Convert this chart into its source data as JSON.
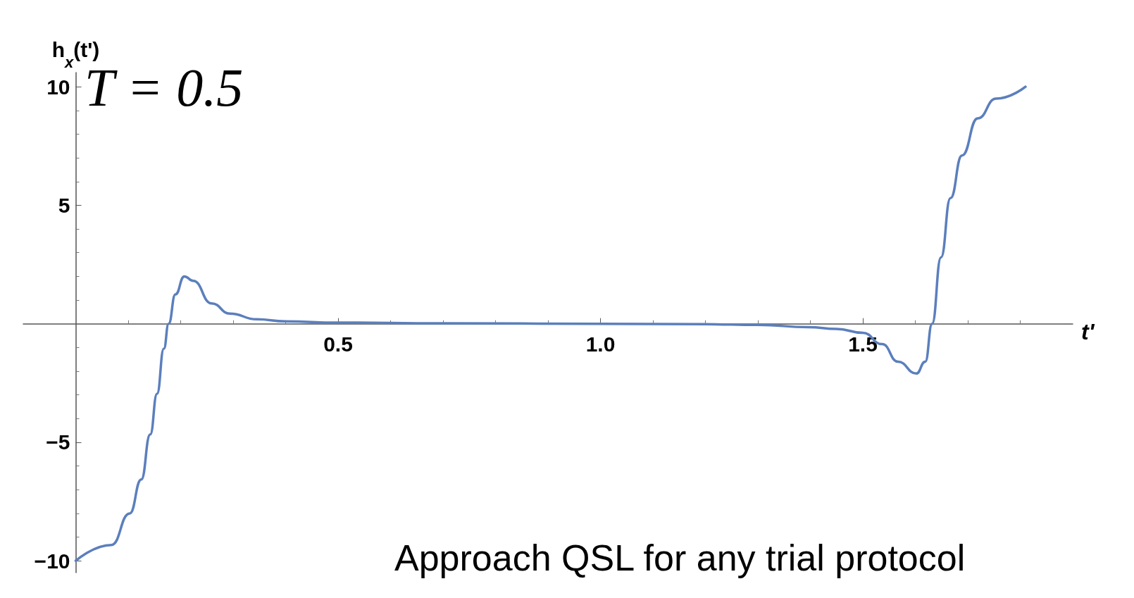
{
  "chart_data": {
    "type": "line",
    "xlabel": "t'",
    "ylabel": "h$_{x}$(t')",
    "annotations": [
      "T = 0.5",
      "Approach QSL for any trial protocol"
    ],
    "xlim": [
      -0.1,
      1.9
    ],
    "ylim": [
      -10.5,
      10.6
    ],
    "xticks": [
      0.5,
      {
        "value": 1,
        "label": "1.0"
      },
      1.5
    ],
    "yticks": [
      -10,
      -5,
      5,
      10
    ],
    "grid": false,
    "marker": "none",
    "line_style": "solid",
    "series": [
      {
        "color": "#5b7fbd",
        "x": [
          0,
          0.068,
          0.103,
          0.125,
          0.142,
          0.155,
          0.168,
          0.177,
          0.19,
          0.207,
          0.224,
          0.259,
          0.294,
          0.345,
          0.4,
          0.5,
          0.7,
          1.0,
          1.2,
          1.3,
          1.397,
          1.45,
          1.5,
          1.537,
          1.567,
          1.602,
          1.619,
          1.632,
          1.649,
          1.667,
          1.689,
          1.719,
          1.754,
          1.81
        ],
        "values": [
          -10,
          -9.33,
          -8,
          -6.57,
          -4.67,
          -2.95,
          -1.05,
          0,
          1.24,
          2,
          1.81,
          0.86,
          0.43,
          0.19,
          0.1,
          0.05,
          0.02,
          0,
          -0.02,
          -0.05,
          -0.14,
          -0.22,
          -0.38,
          -0.86,
          -1.6,
          -2.1,
          -1.6,
          0,
          2.8,
          5.3,
          7.1,
          8.67,
          9.5,
          10
        ]
      }
    ]
  }
}
